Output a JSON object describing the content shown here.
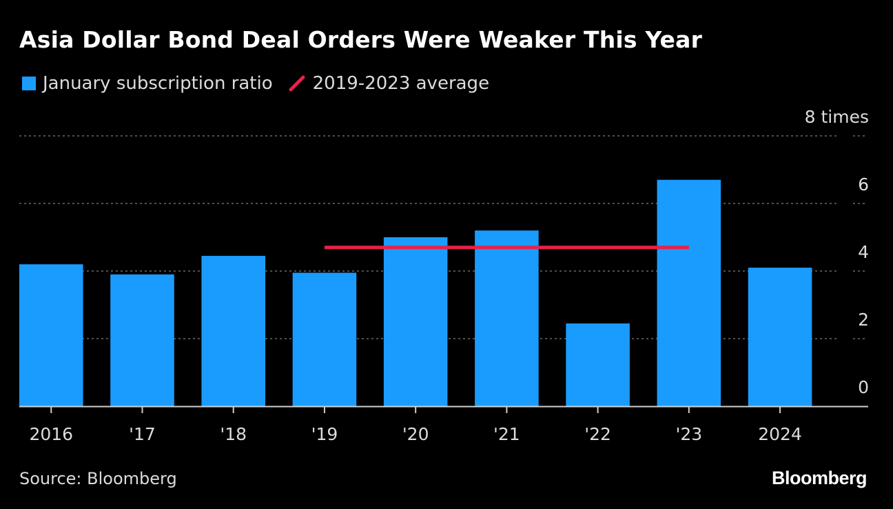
{
  "title": "Asia Dollar Bond Deal Orders Were Weaker This Year",
  "legend": {
    "bar_label": "January subscription ratio",
    "line_label": "2019-2023 average"
  },
  "source": "Source: Bloomberg",
  "logo": "Bloomberg",
  "colors": {
    "bar": "#1a9cff",
    "average": "#e8214a",
    "grid": "#6a6a6a",
    "text": "#dcdcdc"
  },
  "chart_data": {
    "type": "bar",
    "title": "Asia Dollar Bond Deal Orders Were Weaker This Year",
    "categories": [
      "2016",
      "'17",
      "'18",
      "'19",
      "'20",
      "'21",
      "'22",
      "'23",
      "2024"
    ],
    "series": [
      {
        "name": "January subscription ratio",
        "values": [
          4.2,
          3.9,
          4.45,
          3.95,
          5.0,
          5.2,
          2.45,
          6.7,
          4.1
        ]
      }
    ],
    "reference_line": {
      "name": "2019-2023 average",
      "value": 4.7,
      "from_category": "'19",
      "to_category": "'23"
    },
    "ylim": [
      0,
      8
    ],
    "yticks": [
      0,
      2,
      4,
      6,
      8
    ],
    "ytick_labels": [
      "0",
      "2",
      "4",
      "6",
      "8"
    ],
    "yunit": "times",
    "xlabel": "",
    "ylabel": "",
    "grid": true
  }
}
